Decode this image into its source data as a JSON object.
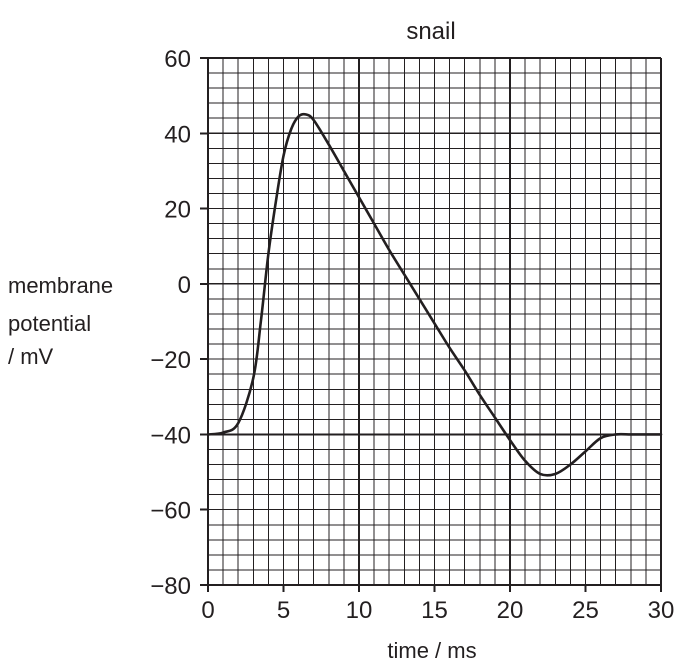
{
  "chart_data": {
    "type": "line",
    "title": "snail",
    "xlabel": "time / ms",
    "ylabel": {
      "line1": "membrane",
      "line2": "potential",
      "line3": "/ mV"
    },
    "xlim": [
      0,
      30
    ],
    "ylim": [
      -80,
      60
    ],
    "x_ticks": [
      0,
      5,
      10,
      15,
      20,
      25,
      30
    ],
    "y_ticks": [
      60,
      40,
      20,
      0,
      -20,
      -40,
      -60,
      -80
    ],
    "x_tick_labels": [
      "0",
      "5",
      "10",
      "15",
      "20",
      "25",
      "30"
    ],
    "y_tick_labels": [
      "60",
      "40",
      "20",
      "0",
      "−20",
      "−40",
      "−60",
      "−80"
    ],
    "grid": true,
    "grid_minor_step_x": 1,
    "grid_minor_step_y": 4,
    "grid_major_step_x": 10,
    "grid_major_step_y": 40,
    "series": [
      {
        "color": "#231f20",
        "points": [
          [
            0,
            -40
          ],
          [
            1,
            -39.5
          ],
          [
            2,
            -37
          ],
          [
            3,
            -25
          ],
          [
            3.5,
            -10
          ],
          [
            4,
            8
          ],
          [
            4.5,
            22
          ],
          [
            5,
            34
          ],
          [
            5.5,
            41
          ],
          [
            6,
            44.5
          ],
          [
            6.5,
            45
          ],
          [
            7,
            43.5
          ],
          [
            8,
            37
          ],
          [
            9,
            30
          ],
          [
            10,
            23
          ],
          [
            11,
            16
          ],
          [
            12,
            9
          ],
          [
            13,
            2.5
          ],
          [
            14,
            -4
          ],
          [
            15,
            -10.5
          ],
          [
            16,
            -17
          ],
          [
            17,
            -23
          ],
          [
            18,
            -29.5
          ],
          [
            19,
            -35.5
          ],
          [
            20,
            -41.5
          ],
          [
            21,
            -47
          ],
          [
            22,
            -50.5
          ],
          [
            23,
            -50.5
          ],
          [
            24,
            -48
          ],
          [
            25,
            -44.5
          ],
          [
            26,
            -41
          ],
          [
            27,
            -40
          ],
          [
            28,
            -40
          ],
          [
            29,
            -40
          ],
          [
            30,
            -40
          ]
        ]
      }
    ]
  }
}
